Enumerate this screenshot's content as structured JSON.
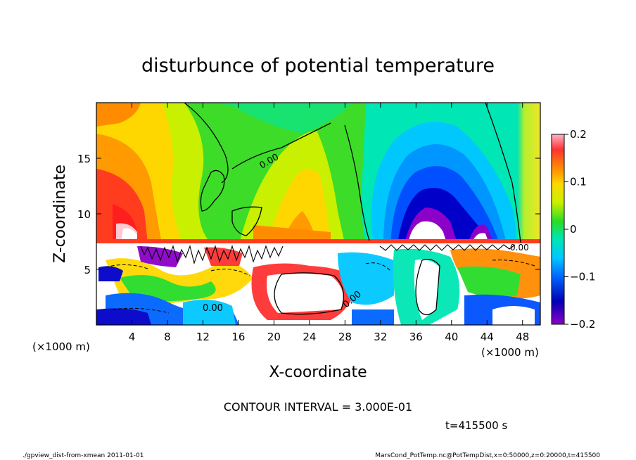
{
  "chart_data": {
    "type": "heatmap",
    "title": "disturbunce of potential temperature",
    "xlabel": "X-coordinate",
    "ylabel": "Z-coordinate",
    "x_unit_left": "(×1000 m)",
    "x_unit_right": "(×1000 m)",
    "xlim": [
      0,
      50
    ],
    "ylim": [
      0,
      20
    ],
    "xticks": [
      4,
      8,
      12,
      16,
      20,
      24,
      28,
      32,
      36,
      40,
      44,
      48
    ],
    "yticks": [
      5,
      10,
      15
    ],
    "colorbar": {
      "range": [
        -0.2,
        0.2
      ],
      "ticks": [
        0.2,
        0.1,
        0,
        -0.1,
        -0.2
      ],
      "tick_labels": [
        "0.2",
        "0.1",
        "0",
        "−0.1",
        "−0.2"
      ]
    },
    "contour_labels": [
      "0.00",
      "0.00",
      "0.00",
      "0.00"
    ],
    "contour_interval": "CONTOUR INTERVAL = 3.000E-01",
    "time_label": "t=415500 s",
    "footer_left": "./gpview_dist-from-xmean  2011-01-01",
    "footer_right": "MarsCond_PotTemp.nc@PotTempDist,x=0:50000,z=0:20000,t=415500"
  }
}
